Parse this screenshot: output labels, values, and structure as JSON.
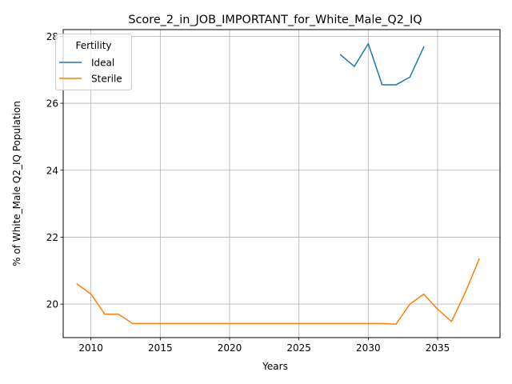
{
  "chart_data": {
    "type": "line",
    "title": "Score_2_in_JOB_IMPORTANT_for_White_Male_Q2_IQ",
    "xlabel": "Years",
    "ylabel": "% of White_Male Q2_IQ Population",
    "xlim": [
      2008,
      2039.5
    ],
    "ylim": [
      19.0,
      28.2
    ],
    "xticks": [
      2010,
      2015,
      2020,
      2025,
      2030,
      2035
    ],
    "yticks": [
      20,
      22,
      24,
      26,
      28
    ],
    "grid": true,
    "legend": {
      "title": "Fertility",
      "placement": "top-left"
    },
    "series": [
      {
        "name": "Ideal",
        "color": "#1f77b4",
        "x": [
          2028,
          2029,
          2030,
          2031,
          2032,
          2033,
          2034
        ],
        "y": [
          27.45,
          27.1,
          27.78,
          26.55,
          26.55,
          26.78,
          27.68
        ]
      },
      {
        "name": "Sterile",
        "color": "#ff7f0e",
        "x": [
          2009,
          2010,
          2011,
          2012,
          2013,
          2014,
          2015,
          2016,
          2017,
          2018,
          2019,
          2020,
          2021,
          2022,
          2023,
          2024,
          2025,
          2026,
          2027,
          2028,
          2029,
          2030,
          2031,
          2032,
          2033,
          2034,
          2035,
          2036,
          2037,
          2038
        ],
        "y": [
          20.6,
          20.3,
          19.7,
          19.7,
          19.42,
          19.42,
          19.42,
          19.42,
          19.42,
          19.42,
          19.42,
          19.42,
          19.42,
          19.42,
          19.42,
          19.42,
          19.42,
          19.42,
          19.42,
          19.42,
          19.42,
          19.42,
          19.42,
          19.4,
          20.0,
          20.3,
          19.85,
          19.48,
          20.35,
          21.35
        ]
      }
    ]
  }
}
